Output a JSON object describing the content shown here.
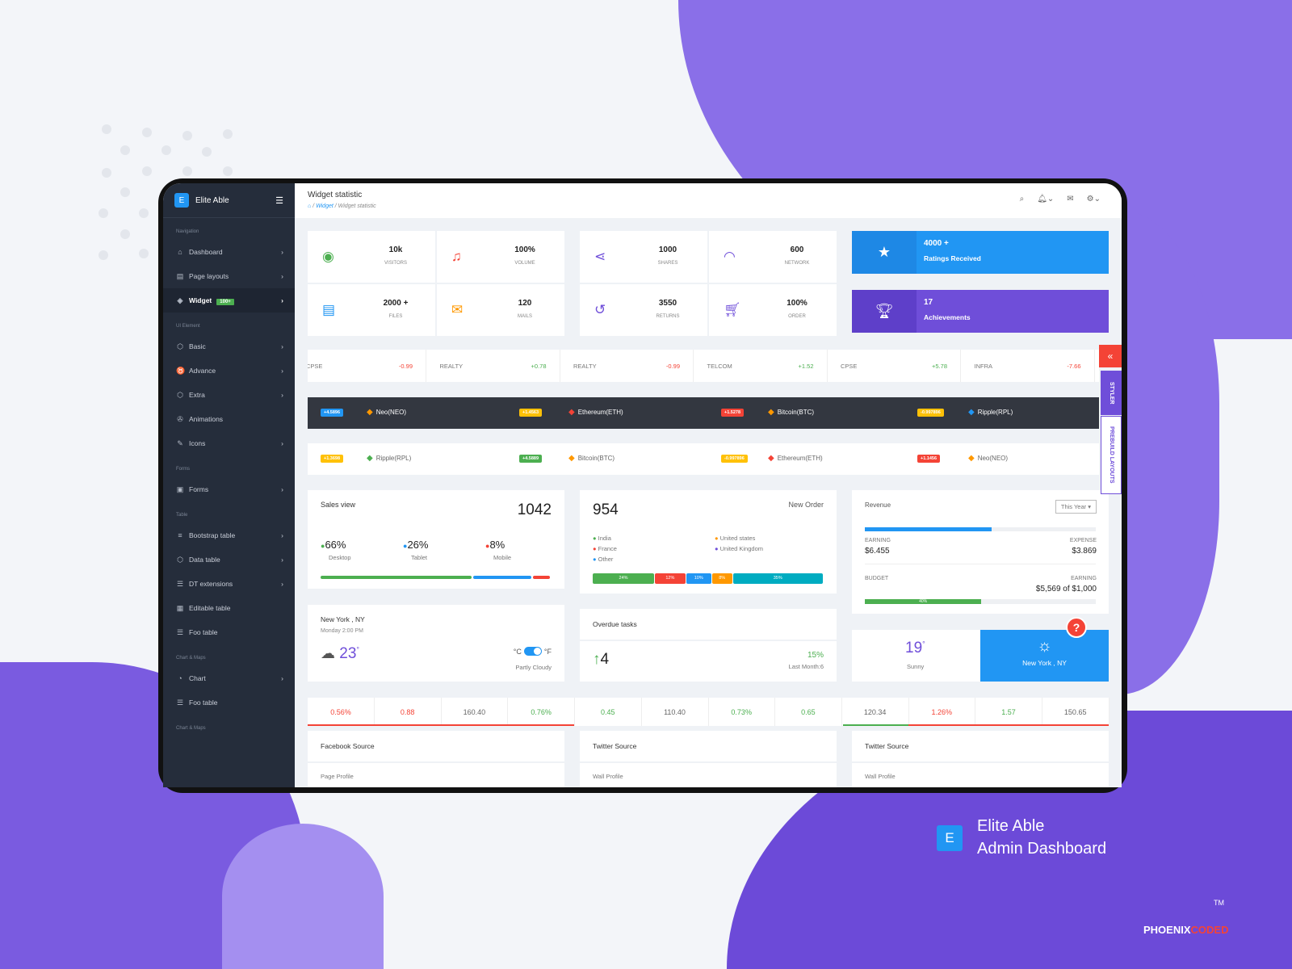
{
  "brand": {
    "name": "Elite Able",
    "logo_letter": "E",
    "promo_line1": "Elite Able",
    "promo_line2": "Admin Dashboard",
    "company": "PHOENIXCODED",
    "company_part1": "PHOENIX",
    "company_part2": "CODED",
    "tm": "TM"
  },
  "colors": {
    "primary": "#2196f3",
    "purple": "#6f4ed9",
    "sidebar": "#252d3b",
    "success": "#4caf50",
    "danger": "#f44336",
    "warning": "#ff9800"
  },
  "sidebar": {
    "sections": [
      {
        "caption": "Navigation",
        "items": [
          {
            "label": "Dashboard",
            "icon": "home-icon",
            "arrow": true
          },
          {
            "label": "Page layouts",
            "icon": "layout-icon",
            "arrow": true
          },
          {
            "label": "Widget",
            "icon": "layers-icon",
            "arrow": true,
            "badge": "100+",
            "active": true
          }
        ]
      },
      {
        "caption": "UI Element",
        "items": [
          {
            "label": "Basic",
            "icon": "box-icon",
            "arrow": true
          },
          {
            "label": "Advance",
            "icon": "gitlab-icon",
            "arrow": true
          },
          {
            "label": "Extra",
            "icon": "package-icon",
            "arrow": true
          },
          {
            "label": "Animations",
            "icon": "aperture-icon",
            "arrow": false
          },
          {
            "label": "Icons",
            "icon": "feather-icon",
            "arrow": true
          }
        ]
      },
      {
        "caption": "Forms",
        "items": [
          {
            "label": "Forms",
            "icon": "file-text-icon",
            "arrow": true
          }
        ]
      },
      {
        "caption": "Table",
        "items": [
          {
            "label": "Bootstrap table",
            "icon": "server-icon",
            "arrow": true
          },
          {
            "label": "Data table",
            "icon": "box-icon",
            "arrow": true
          },
          {
            "label": "DT extensions",
            "icon": "database-icon",
            "arrow": true
          },
          {
            "label": "Editable table",
            "icon": "grid-icon",
            "arrow": false
          },
          {
            "label": "Foo table",
            "icon": "list-icon",
            "arrow": false
          }
        ]
      },
      {
        "caption": "Chart & Maps",
        "items": [
          {
            "label": "Chart",
            "icon": "pie-chart-icon",
            "arrow": true
          },
          {
            "label": "Foo table",
            "icon": "list-icon",
            "arrow": false
          }
        ]
      },
      {
        "caption": "Chart & Maps",
        "items": []
      }
    ]
  },
  "header": {
    "title": "Widget statistic",
    "breadcrumb": [
      "Widget",
      "Widget statistic"
    ]
  },
  "stats_left": [
    {
      "value": "10k",
      "label": "VISITORS",
      "icon": "eye-icon",
      "color": "#4caf50"
    },
    {
      "value": "100%",
      "label": "VOLUME",
      "icon": "music-icon",
      "color": "#f44336"
    },
    {
      "value": "2000 +",
      "label": "FILES",
      "icon": "file-icon",
      "color": "#2196f3"
    },
    {
      "value": "120",
      "label": "MAILS",
      "icon": "mail-icon",
      "color": "#ff9800"
    }
  ],
  "stats_right": [
    {
      "value": "1000",
      "label": "SHARES",
      "icon": "share-icon",
      "color": "#6f4ed9"
    },
    {
      "value": "600",
      "label": "NETWORK",
      "icon": "wifi-icon",
      "color": "#6f4ed9"
    },
    {
      "value": "3550",
      "label": "RETURNS",
      "icon": "rotate-icon",
      "color": "#6f4ed9"
    },
    {
      "value": "100%",
      "label": "ORDER",
      "icon": "cart-icon",
      "color": "#6f4ed9"
    }
  ],
  "ratings": {
    "value": "4000 +",
    "label": "Ratings Received"
  },
  "achievements": {
    "value": "17",
    "label": "Achievements"
  },
  "ticker": [
    {
      "name": "CPSE",
      "value": "-0.99",
      "dir": "down"
    },
    {
      "name": "REALTY",
      "value": "+0.78",
      "dir": "up"
    },
    {
      "name": "REALTY",
      "value": "-0.99",
      "dir": "down"
    },
    {
      "name": "TELCOM",
      "value": "+1.52",
      "dir": "up"
    },
    {
      "name": "CPSE",
      "value": "+5.78",
      "dir": "up"
    },
    {
      "name": "INFRA",
      "value": "-7.66",
      "dir": "down"
    }
  ],
  "crypto_dark": [
    {
      "badge": "+4.5896",
      "badge_color": "#2196f3",
      "name": "Neo(NEO)",
      "icon_color": "#ff9800"
    },
    {
      "badge": "+1.4563",
      "badge_color": "#ffc107",
      "name": "Ethereum(ETH)",
      "icon_color": "#f44336"
    },
    {
      "badge": "+1.5278",
      "badge_color": "#f44336",
      "name": "Bitcoin(BTC)",
      "icon_color": "#ff9800"
    },
    {
      "badge": "-0.997896",
      "badge_color": "#ffc107",
      "name": "Ripple(RPL)",
      "icon_color": "#2196f3"
    }
  ],
  "crypto_light": [
    {
      "badge": "+1.3698",
      "badge_color": "#ffc107",
      "name": "Ripple(RPL)",
      "icon_color": "#4caf50"
    },
    {
      "badge": "+4.5889",
      "badge_color": "#4caf50",
      "name": "Bitcoin(BTC)",
      "icon_color": "#ff9800"
    },
    {
      "badge": "-0.997896",
      "badge_color": "#ffc107",
      "name": "Ethereum(ETH)",
      "icon_color": "#f44336"
    },
    {
      "badge": "+1.1456",
      "badge_color": "#f44336",
      "name": "Neo(NEO)",
      "icon_color": "#ff9800"
    }
  ],
  "sales": {
    "title": "Sales view",
    "total": "1042",
    "items": [
      {
        "pct": "66%",
        "label": "Desktop",
        "color": "#4caf50",
        "value": 66
      },
      {
        "pct": "26%",
        "label": "Tablet",
        "color": "#2196f3",
        "value": 26
      },
      {
        "pct": "8%",
        "label": "Mobile",
        "color": "#f44336",
        "value": 8
      }
    ]
  },
  "orders": {
    "total": "954",
    "title": "New Order",
    "legend": [
      {
        "label": "India",
        "color": "#4caf50"
      },
      {
        "label": "United states",
        "color": "#ff9800"
      },
      {
        "label": "France",
        "color": "#f44336"
      },
      {
        "label": "United Kingdom",
        "color": "#6f4ed9"
      },
      {
        "label": "Other",
        "color": "#2196f3"
      }
    ],
    "bars": [
      {
        "label": "24%",
        "value": 24,
        "color": "#4caf50"
      },
      {
        "label": "12%",
        "value": 12,
        "color": "#f44336"
      },
      {
        "label": "10%",
        "value": 10,
        "color": "#2196f3"
      },
      {
        "label": "8%",
        "value": 8,
        "color": "#ff9800"
      },
      {
        "label": "35%",
        "value": 35,
        "color": "#00acc1"
      }
    ]
  },
  "revenue": {
    "title": "Revenue",
    "period": "This Year",
    "progress": 55,
    "earning_label": "EARNING",
    "earning": "$6.455",
    "expense_label": "EXPENSE",
    "expense": "$3.869",
    "budget_label": "BUDGET",
    "earning2_label": "EARNING",
    "budget": "$5,569 of $1,000",
    "budget_progress": 40,
    "budget_progress_label": "40%"
  },
  "weather": {
    "city": "New York , NY",
    "time": "Monday 2:00 PM",
    "temp": "23",
    "deg": "°",
    "unit_c": "°C",
    "unit_f": "°F",
    "condition": "Partly Cloudy",
    "icon": "cloud-drizzle-icon"
  },
  "overdue": {
    "title": "Overdue tasks",
    "value": "4",
    "pct": "15%",
    "note": "Last Month:6"
  },
  "weather2": {
    "temp": "19",
    "deg": "°",
    "condition": "Sunny",
    "city": "New York , NY",
    "icon": "sun-icon"
  },
  "numbers": [
    {
      "v": "0.56%",
      "dir": "down"
    },
    {
      "v": "0.88",
      "dir": "down"
    },
    {
      "v": "160.40",
      "dir": "none"
    },
    {
      "v": "0.76%",
      "dir": "up"
    },
    {
      "v": "0.45",
      "dir": "up"
    },
    {
      "v": "110.40",
      "dir": "none"
    },
    {
      "v": "0.73%",
      "dir": "up"
    },
    {
      "v": "0.65",
      "dir": "up"
    },
    {
      "v": "120.34",
      "dir": "none"
    },
    {
      "v": "1.26%",
      "dir": "down"
    },
    {
      "v": "1.57",
      "dir": "up"
    },
    {
      "v": "150.65",
      "dir": "none"
    }
  ],
  "sources": [
    {
      "title": "Facebook Source",
      "sub": "Page Profile"
    },
    {
      "title": "Twitter Source",
      "sub": "Wall Profile"
    },
    {
      "title": "Twitter Source",
      "sub": "Wall Profile"
    }
  ],
  "styler": {
    "label": "STYLER",
    "prebuild": "PREBUILD LAYOUTS",
    "help": "?"
  }
}
